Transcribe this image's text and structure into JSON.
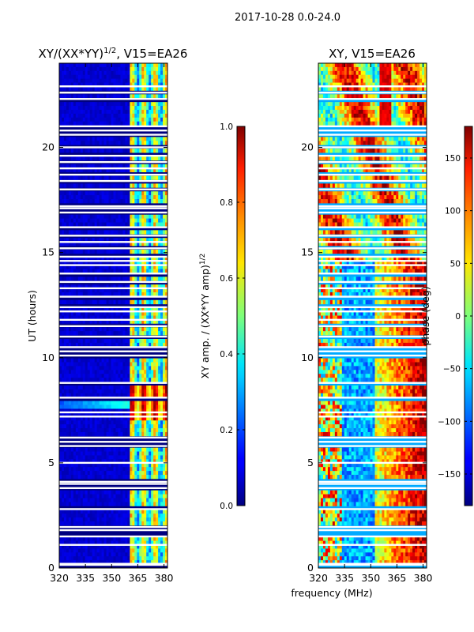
{
  "figure": {
    "suptitle": "2017-10-28 0.0-24.0",
    "ylabel": "UT (hours)",
    "xlabel": "frequency (MHz)"
  },
  "colors": {
    "background": "#ffffff",
    "frame": "#000000",
    "gap_rows": "#ffffff"
  },
  "chart_data": [
    {
      "type": "heatmap",
      "title_text": "XY/(XX*YY)",
      "title_sup": "1/2",
      "title_tail": ", V15=EA26",
      "xlim": [
        320,
        382
      ],
      "ylim": [
        0,
        24
      ],
      "x_ticks": [
        320,
        335,
        350,
        365,
        380
      ],
      "y_ticks": [
        0,
        5,
        10,
        15,
        20
      ],
      "colorbar": {
        "label_text": "XY amp. / (XX*YY amp)",
        "label_sup": "1/2",
        "range": [
          0.0,
          1.0
        ],
        "ticks": [
          "0.0",
          "0.2",
          "0.4",
          "0.6",
          "0.8",
          "1.0"
        ],
        "colormap": "jet"
      },
      "features": [
        {
          "desc": "low amplitude below 360 MHz",
          "freq": [
            320,
            360
          ],
          "value": 0.05
        },
        {
          "desc": "high amplitude bands",
          "freq": [
            360,
            382
          ],
          "value": 0.45
        },
        {
          "desc": "bright burst",
          "time": [
            7.0,
            8.6
          ],
          "freq": [
            360,
            382
          ],
          "value": 0.85
        }
      ]
    },
    {
      "type": "heatmap",
      "title_text": "XY, V15=EA26",
      "xlim": [
        320,
        382
      ],
      "ylim": [
        0,
        24
      ],
      "x_ticks": [
        320,
        335,
        350,
        365,
        380
      ],
      "y_ticks": [
        0,
        5,
        10,
        15,
        20
      ],
      "colorbar": {
        "label_text": "phase (deg)",
        "range": [
          -180,
          180
        ],
        "ticks": [
          "-150",
          "-100",
          "-50",
          "0",
          "50",
          "100",
          "150"
        ],
        "colormap": "jet"
      }
    }
  ],
  "gap_rows_hours": [
    0.15,
    0.2,
    1.1,
    1.5,
    1.8,
    1.95,
    2.8,
    3.8,
    4.0,
    4.1,
    5.0,
    5.8,
    6.0,
    6.2,
    7.2,
    7.4,
    8.1,
    8.8,
    10.1,
    10.3,
    10.5,
    11.0,
    11.5,
    11.8,
    12.2,
    12.4,
    12.9,
    13.3,
    13.6,
    14.0,
    14.4,
    14.6,
    14.8,
    15.2,
    15.5,
    15.8,
    16.2,
    16.9,
    17.1,
    17.2,
    18.0,
    18.4,
    18.7,
    19.0,
    19.3,
    19.6,
    20.0,
    20.6,
    20.8,
    21.0,
    22.3,
    22.6,
    22.9
  ]
}
